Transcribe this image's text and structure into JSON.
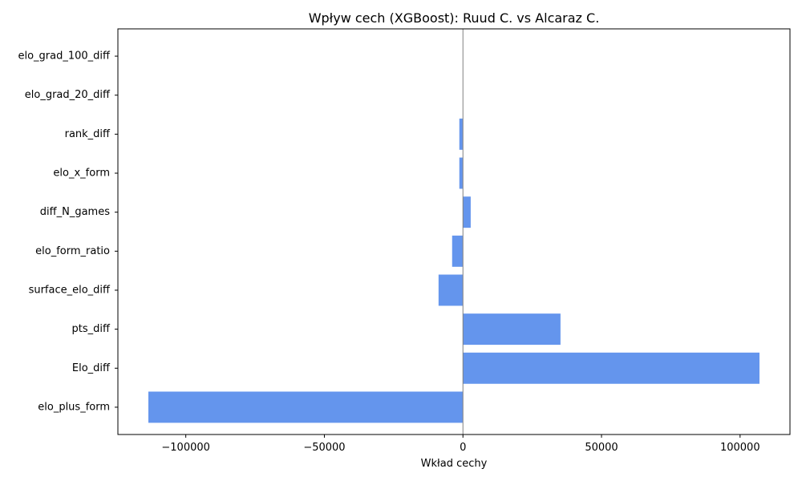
{
  "chart_data": {
    "type": "bar",
    "orientation": "horizontal",
    "title": "Wpływ cech (XGBoost): Ruud C. vs Alcaraz C.",
    "xlabel": "Wkład cechy",
    "ylabel": "",
    "categories": [
      "elo_plus_form",
      "Elo_diff",
      "pts_diff",
      "surface_elo_diff",
      "elo_form_ratio",
      "diff_N_games",
      "elo_x_form",
      "rank_diff",
      "elo_grad_20_diff",
      "elo_grad_100_diff"
    ],
    "values": [
      -113500,
      107000,
      35200,
      -8800,
      -3900,
      2800,
      -1300,
      -1300,
      0,
      0
    ],
    "xlim": [
      -124500,
      118000
    ],
    "xticks": [
      -100000,
      -50000,
      0,
      50000,
      100000
    ],
    "xtick_labels": [
      "−100000",
      "−50000",
      "0",
      "50000",
      "100000"
    ],
    "bar_color": "#6495ED",
    "zero_line_color": "#808080",
    "grid": false
  }
}
